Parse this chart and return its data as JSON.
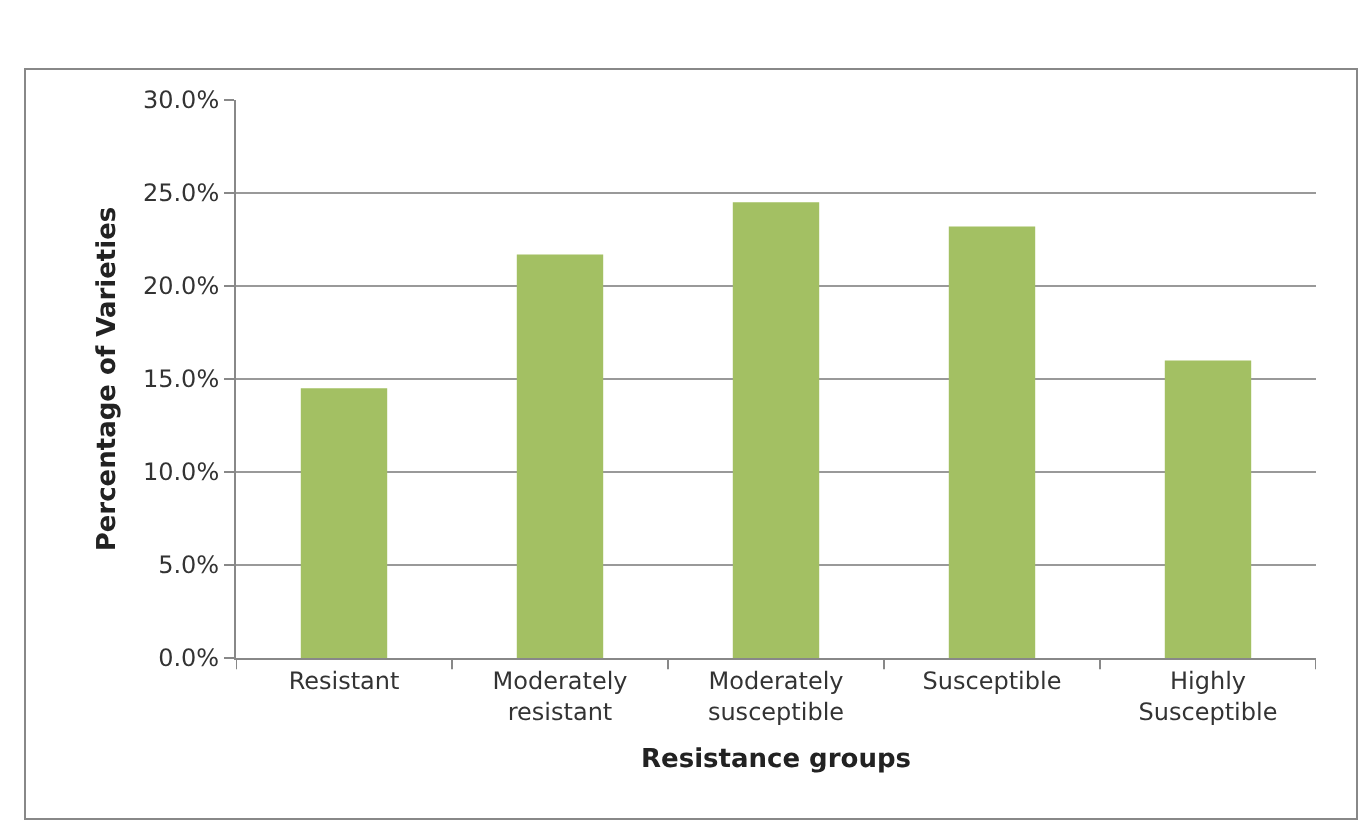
{
  "chart_data": {
    "type": "bar",
    "xlabel": "Resistance groups",
    "ylabel": "Percentage of Varieties",
    "categories": [
      "Resistant",
      "Moderately\nresistant",
      "Moderately\nsusceptible",
      "Susceptible",
      "Highly\nSusceptible"
    ],
    "values": [
      14.5,
      21.7,
      24.5,
      23.2,
      16.0
    ],
    "color": "#a3c063",
    "ylim": [
      0,
      30
    ],
    "yticks": [
      {
        "value": 0,
        "label": "0.0%"
      },
      {
        "value": 5,
        "label": "5.0%"
      },
      {
        "value": 10,
        "label": "10.0%"
      },
      {
        "value": 15,
        "label": "15.0%"
      },
      {
        "value": 20,
        "label": "20.0%"
      },
      {
        "value": 25,
        "label": "25.0%"
      },
      {
        "value": 30,
        "label": "30.0%"
      }
    ],
    "grid": "y"
  }
}
